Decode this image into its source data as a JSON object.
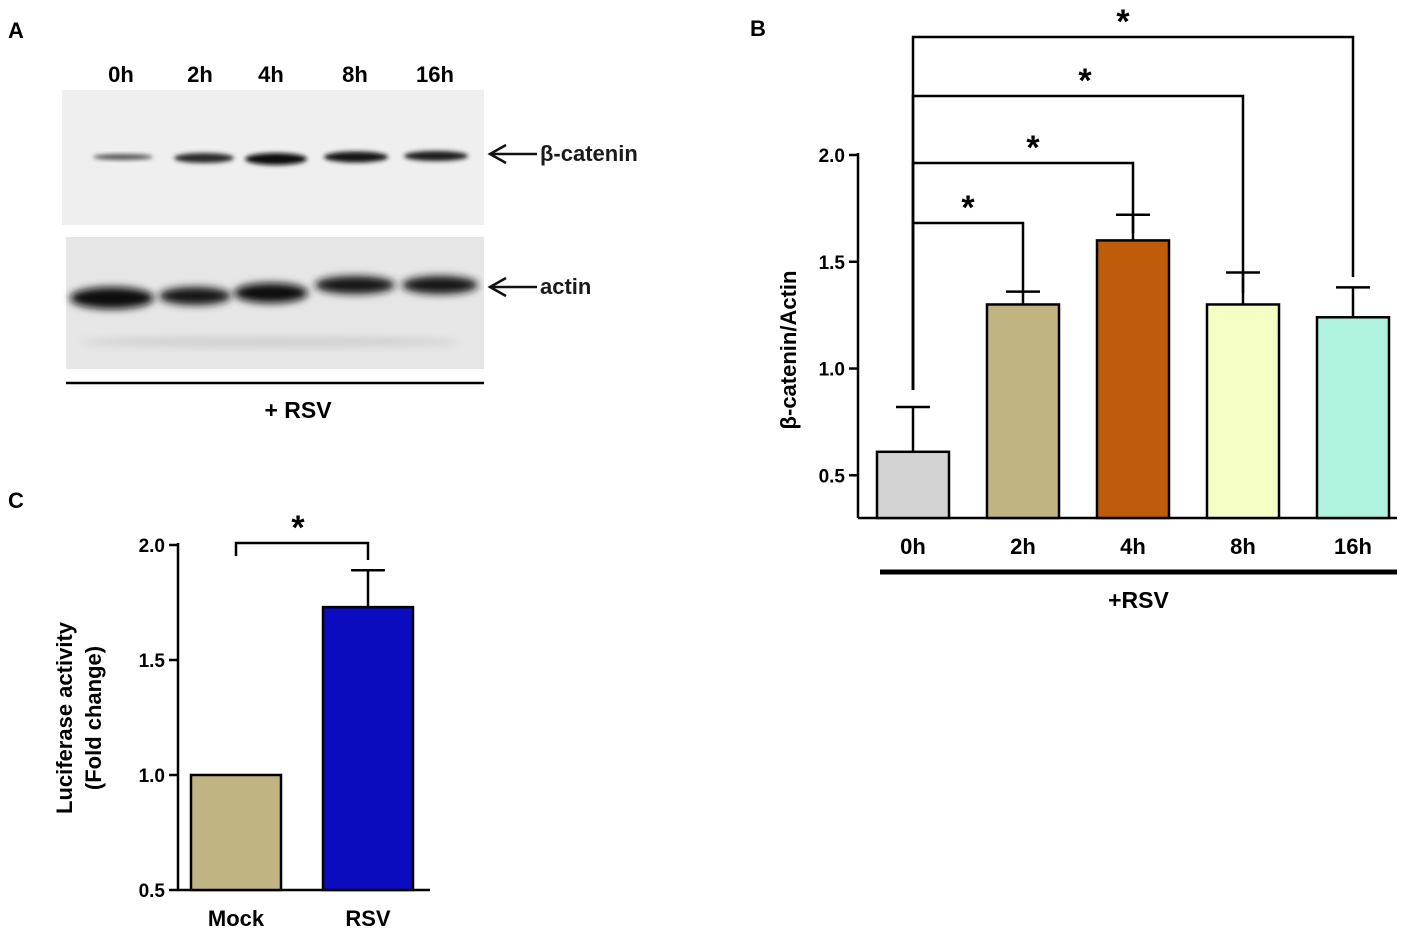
{
  "panels": {
    "a": {
      "letter": "A",
      "lanes": [
        "0h",
        "2h",
        "4h",
        "8h",
        "16h"
      ],
      "band_labels": [
        "β-catenin",
        "actin"
      ],
      "treatment": "+ RSV"
    },
    "b": {
      "letter": "B"
    },
    "c": {
      "letter": "C"
    }
  },
  "chart_data": [
    {
      "id": "B",
      "type": "bar",
      "categories": [
        "0h",
        "2h",
        "4h",
        "8h",
        "16h"
      ],
      "values": [
        0.61,
        1.3,
        1.6,
        1.3,
        1.24
      ],
      "errors": [
        0.21,
        0.06,
        0.12,
        0.15,
        0.14
      ],
      "colors": [
        "#d3d3d3",
        "#c0b582",
        "#bf5c0b",
        "#f5fec4",
        "#aff2df"
      ],
      "ylabel": "β-catenin/Actin",
      "ylim": [
        0.3,
        2.0
      ],
      "yticks": [
        "0.5",
        "1.0",
        "1.5",
        "2.0"
      ],
      "group_label": "+RSV",
      "significance": [
        {
          "from": "0h",
          "to": "2h",
          "label": "*"
        },
        {
          "from": "0h",
          "to": "4h",
          "label": "*"
        },
        {
          "from": "0h",
          "to": "8h",
          "label": "*"
        },
        {
          "from": "0h",
          "to": "16h",
          "label": "*"
        }
      ]
    },
    {
      "id": "C",
      "type": "bar",
      "categories": [
        "Mock",
        "RSV"
      ],
      "values": [
        1.0,
        1.73
      ],
      "errors": [
        0.0,
        0.16
      ],
      "colors": [
        "#c0b582",
        "#0b0bbf"
      ],
      "ylabel": "Luciferase activity",
      "ylabel2": "(Fold change)",
      "ylim": [
        0.5,
        2.0
      ],
      "yticks": [
        "0.5",
        "1.0",
        "1.5",
        "2.0"
      ],
      "significance": [
        {
          "from": "Mock",
          "to": "RSV",
          "label": "*"
        }
      ]
    }
  ]
}
